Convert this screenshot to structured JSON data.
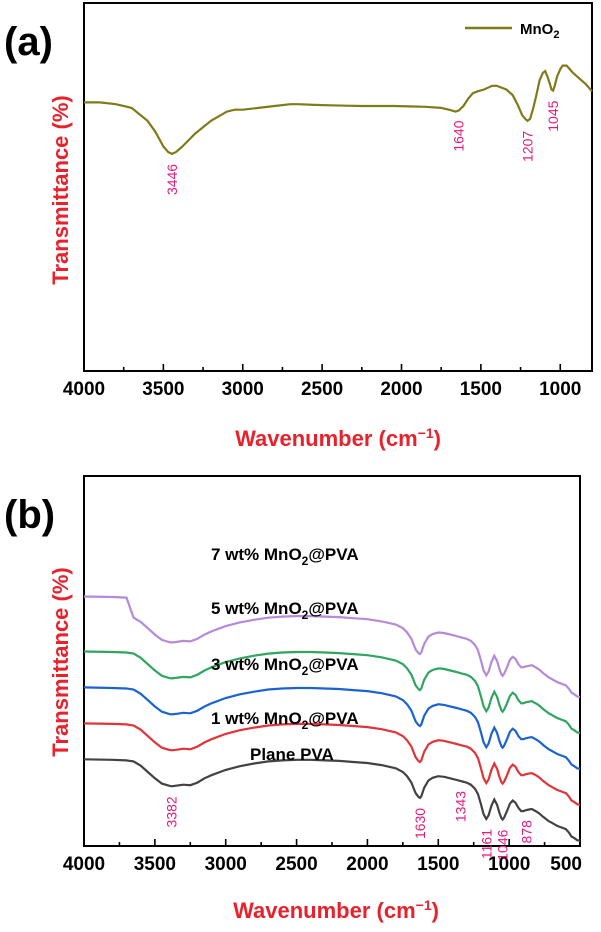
{
  "chart_data": [
    {
      "panel": "(a)",
      "type": "line",
      "xlabel": "Wavenumber (cm",
      "xlabel_sup": "−1",
      "xlabel_close": ")",
      "ylabel": "Transmittance (%)",
      "xlim": [
        4000,
        800
      ],
      "x_reversed": true,
      "xticks": [
        4000,
        3500,
        3000,
        2500,
        2000,
        1500,
        1000
      ],
      "ylim": [
        0,
        100
      ],
      "grid": false,
      "legend": {
        "placement": "top-right",
        "entries": [
          {
            "base": "MnO",
            "sub": "2"
          }
        ]
      },
      "series": [
        {
          "name": "MnO2",
          "color": "#7f7a1a",
          "x": [
            4000,
            3900,
            3800,
            3700,
            3600,
            3550,
            3500,
            3470,
            3446,
            3420,
            3380,
            3300,
            3200,
            3100,
            3050,
            3000,
            2900,
            2800,
            2700,
            2650,
            2550,
            2450,
            2350,
            2250,
            2150,
            2050,
            1950,
            1850,
            1750,
            1700,
            1660,
            1640,
            1610,
            1580,
            1550,
            1520,
            1480,
            1430,
            1400,
            1370,
            1340,
            1300,
            1270,
            1240,
            1220,
            1207,
            1190,
            1170,
            1150,
            1130,
            1110,
            1095,
            1080,
            1065,
            1055,
            1045,
            1035,
            1020,
            1000,
            985,
            960,
            920,
            880,
            840,
            800
          ],
          "y": [
            73,
            73,
            72.5,
            71.5,
            68,
            65,
            61,
            59.5,
            59,
            59.5,
            61,
            64.5,
            68,
            70.5,
            71,
            71,
            71.5,
            72,
            72.5,
            72.5,
            72.3,
            72.2,
            72.1,
            72,
            72,
            72,
            71.9,
            71.8,
            71.5,
            71,
            70.5,
            70.8,
            72,
            74,
            75.5,
            76,
            76.5,
            77.5,
            77.5,
            77,
            76.5,
            75,
            72.5,
            69.5,
            68.5,
            68,
            68.5,
            71.5,
            75,
            79,
            81,
            81.5,
            80,
            78,
            76.5,
            76.2,
            77.5,
            80,
            82,
            83,
            83,
            81,
            79.5,
            78,
            76
          ]
        }
      ],
      "annotations": [
        {
          "text": "3446",
          "x": 3446
        },
        {
          "text": "1640",
          "x": 1640
        },
        {
          "text": "1207",
          "x": 1207
        },
        {
          "text": "1045",
          "x": 1045
        }
      ]
    },
    {
      "panel": "(b)",
      "type": "line",
      "xlabel": "Wavenumber (cm",
      "xlabel_sup": "−1",
      "xlabel_close": ")",
      "ylabel": "Transmittance (%)",
      "xlim": [
        4000,
        500
      ],
      "x_reversed": true,
      "xticks": [
        4000,
        3500,
        3000,
        2500,
        2000,
        1500,
        1000,
        500
      ],
      "ylim": [
        0,
        350
      ],
      "grid": false,
      "base_profile": {
        "x": [
          4000,
          3800,
          3700,
          3650,
          3600,
          3550,
          3500,
          3450,
          3400,
          3382,
          3350,
          3300,
          3250,
          3200,
          3150,
          3100,
          3000,
          2900,
          2800,
          2700,
          2600,
          2500,
          2400,
          2300,
          2200,
          2100,
          2000,
          1900,
          1850,
          1800,
          1750,
          1720,
          1690,
          1660,
          1640,
          1630,
          1620,
          1600,
          1570,
          1540,
          1500,
          1460,
          1430,
          1400,
          1370,
          1343,
          1330,
          1300,
          1270,
          1240,
          1220,
          1200,
          1180,
          1161,
          1145,
          1125,
          1105,
          1085,
          1070,
          1055,
          1046,
          1035,
          1015,
          995,
          975,
          955,
          935,
          915,
          900,
          880,
          878,
          860,
          840,
          820,
          800,
          780,
          760,
          740,
          720,
          700,
          680,
          660,
          640,
          620,
          600,
          580,
          560,
          540,
          520,
          500
        ],
        "y": [
          82,
          81.5,
          81,
          80,
          76,
          70,
          64,
          59,
          57,
          56.5,
          57,
          58,
          57.5,
          60,
          64,
          67,
          72,
          75.5,
          78,
          80,
          81,
          81.5,
          81.5,
          81,
          80.5,
          79.5,
          78.5,
          76.5,
          75,
          73.5,
          70,
          66,
          60,
          50,
          46.5,
          45.5,
          47,
          55,
          62,
          64.5,
          66,
          65.5,
          64.5,
          63.5,
          62.5,
          61.5,
          61,
          60,
          58,
          54,
          49,
          40,
          30,
          25.5,
          29,
          38,
          44,
          39,
          32,
          26.5,
          25,
          27,
          33,
          40,
          43,
          41,
          36,
          33,
          33,
          34,
          34,
          34.5,
          35,
          33.5,
          32,
          30,
          27.5,
          25.5,
          23.5,
          22,
          20.5,
          19,
          18,
          17,
          16,
          13,
          9,
          7.5,
          5.5,
          5
        ]
      },
      "series": [
        {
          "name": "Plane PVA",
          "label_base": "Plane PVA",
          "color": "#424242",
          "offset": 0,
          "start_y": 82
        },
        {
          "name": "1 wt% MnO2@PVA",
          "label_base": "1 wt% MnO",
          "label_sub": "2",
          "label_tail": "@PVA",
          "color": "#e0343a",
          "offset": 34,
          "start_y": 82
        },
        {
          "name": "3 wt% MnO2@PVA",
          "label_base": "3 wt% MnO",
          "label_sub": "2",
          "label_tail": "@PVA",
          "color": "#1a63d1",
          "offset": 68,
          "start_y": 82
        },
        {
          "name": "5 wt% MnO2@PVA",
          "label_base": "5 wt% MnO",
          "label_sub": "2",
          "label_tail": "@PVA",
          "color": "#2fa55f",
          "offset": 102,
          "start_y": 82
        },
        {
          "name": "7 wt% MnO2@PVA",
          "label_base": "7 wt% MnO",
          "label_sub": "2",
          "label_tail": "@PVA",
          "color": "#b68ad9",
          "offset": 136,
          "start_y": 100
        }
      ],
      "annotations": [
        {
          "text": "3382",
          "x": 3382
        },
        {
          "text": "1630",
          "x": 1630
        },
        {
          "text": "1343",
          "x": 1343
        },
        {
          "text": "1161",
          "x": 1161
        },
        {
          "text": "1046",
          "x": 1046
        },
        {
          "text": "878",
          "x": 878
        }
      ]
    }
  ]
}
